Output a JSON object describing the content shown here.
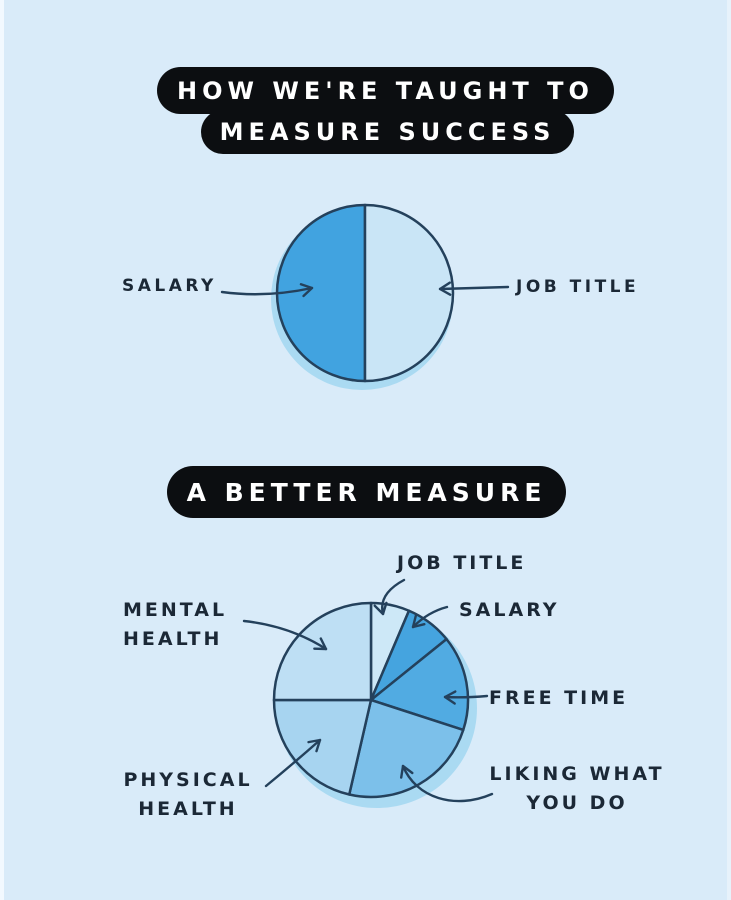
{
  "page": {
    "background": "#d9ebf9",
    "ink": "#24415c",
    "text_color": "#1b2836",
    "halo": "#aadaf2",
    "pill_bg": "#0c0e11",
    "pill_text": "#ffffff"
  },
  "banners": {
    "line1": "HOW WE'RE TAUGHT TO",
    "line2": "MEASURE SUCCESS",
    "line3": "A BETTER MEASURE"
  },
  "chart_data": [
    {
      "type": "pie",
      "title": "HOW WE'RE TAUGHT TO MEASURE SUCCESS",
      "start_angle_deg": 180,
      "direction": "clockwise",
      "legend_position": "none",
      "slices": [
        {
          "label": "SALARY",
          "percent": 50,
          "color": "#41a3e0"
        },
        {
          "label": "JOB TITLE",
          "percent": 50,
          "color": "#c9e5f6"
        }
      ]
    },
    {
      "type": "pie",
      "title": "A BETTER MEASURE",
      "start_angle_deg": 0,
      "direction": "clockwise",
      "legend_position": "none",
      "slices": [
        {
          "label": "JOB TITLE",
          "percent": 6.4,
          "color": "#cde8f7"
        },
        {
          "label": "SALARY",
          "percent": 7.8,
          "color": "#45a4df"
        },
        {
          "label": "FREE TIME",
          "percent": 15.8,
          "color": "#51abe2"
        },
        {
          "label": "LIKING WHAT YOU DO",
          "percent": 23.6,
          "color": "#7cc0ea"
        },
        {
          "label": "PHYSICAL HEALTH",
          "percent": 21.4,
          "color": "#a7d4f0"
        },
        {
          "label": "MENTAL HEALTH",
          "percent": 25.0,
          "color": "#bedff4"
        }
      ]
    }
  ],
  "labels": {
    "pie1_salary": "SALARY",
    "pie1_job_title": "JOB TITLE",
    "pie2_job_title": "JOB TITLE",
    "pie2_salary": "SALARY",
    "pie2_free_time": "FREE TIME",
    "pie2_liking_line1": "LIKING WHAT",
    "pie2_liking_line2": "YOU DO",
    "pie2_mental_line1": "MENTAL",
    "pie2_mental_line2": "HEALTH",
    "pie2_physical_line1": "PHYSICAL",
    "pie2_physical_line2": "HEALTH"
  }
}
